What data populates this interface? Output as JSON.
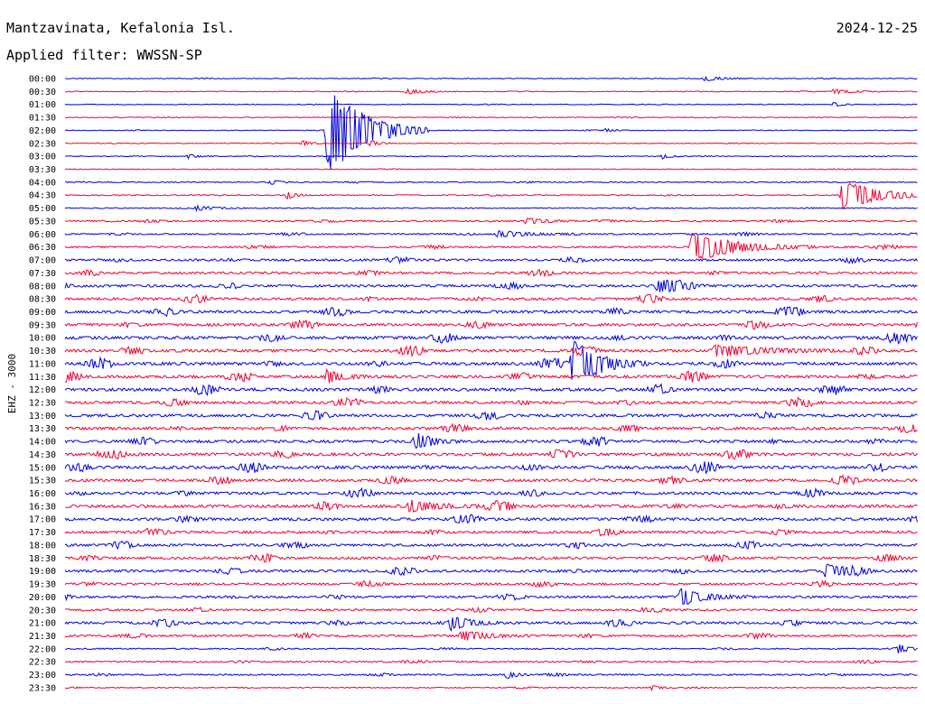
{
  "header": {
    "station": "Mantzavinata, Kefalonia Isl.",
    "date": "2024-12-25",
    "filter": "Applied filter: WWSSN-SP"
  },
  "chart_data": {
    "type": "line",
    "ylabel": "EHZ - 3000",
    "rows": [
      "00:00",
      "00:30",
      "01:00",
      "01:30",
      "02:00",
      "02:30",
      "03:00",
      "03:30",
      "04:00",
      "04:30",
      "05:00",
      "05:30",
      "06:00",
      "06:30",
      "07:00",
      "07:30",
      "08:00",
      "08:30",
      "09:00",
      "09:30",
      "10:00",
      "10:30",
      "11:00",
      "11:30",
      "12:00",
      "12:30",
      "13:00",
      "13:30",
      "14:00",
      "14:30",
      "15:00",
      "15:30",
      "16:00",
      "16:30",
      "17:00",
      "17:30",
      "18:00",
      "18:30",
      "19:00",
      "19:30",
      "20:00",
      "20:30",
      "21:00",
      "21:30",
      "22:00",
      "22:30",
      "23:00",
      "23:30"
    ],
    "minutes_per_row": 30,
    "colors": [
      "#0000dd",
      "#ee0033"
    ],
    "noise_level": [
      0.3,
      0.3,
      0.3,
      0.3,
      0.3,
      0.3,
      0.3,
      0.3,
      0.4,
      0.4,
      0.4,
      0.6,
      0.6,
      0.7,
      0.9,
      0.9,
      1.0,
      1.0,
      1.1,
      1.1,
      1.2,
      1.2,
      1.2,
      1.2,
      1.2,
      1.1,
      1.1,
      1.1,
      1.1,
      1.2,
      1.2,
      1.1,
      1.1,
      1.2,
      1.1,
      1.0,
      1.0,
      1.0,
      1.0,
      0.9,
      0.9,
      0.8,
      1.0,
      0.8,
      0.5,
      0.6,
      0.6,
      0.4
    ],
    "events": [
      {
        "row": 0,
        "minute": 22.5,
        "amp": 3,
        "dur": 0.6
      },
      {
        "row": 1,
        "minute": 12,
        "amp": 3,
        "dur": 0.6
      },
      {
        "row": 1,
        "minute": 27,
        "amp": 3,
        "dur": 0.6
      },
      {
        "row": 2,
        "minute": 27,
        "amp": 3,
        "dur": 0.3
      },
      {
        "row": 4,
        "minute": 9.2,
        "amp": 55,
        "dur": 1.2
      },
      {
        "row": 4,
        "minute": 19,
        "amp": 2,
        "dur": 0.3
      },
      {
        "row": 5,
        "minute": 8.3,
        "amp": 4,
        "dur": 0.3
      },
      {
        "row": 5,
        "minute": 10.7,
        "amp": 4,
        "dur": 0.3
      },
      {
        "row": 6,
        "minute": 4.3,
        "amp": 3,
        "dur": 0.3
      },
      {
        "row": 6,
        "minute": 21,
        "amp": 3,
        "dur": 0.3
      },
      {
        "row": 8,
        "minute": 7.2,
        "amp": 3,
        "dur": 0.3
      },
      {
        "row": 9,
        "minute": 7.8,
        "amp": 5,
        "dur": 0.3
      },
      {
        "row": 9,
        "minute": 27.3,
        "amp": 18,
        "dur": 1.2
      },
      {
        "row": 10,
        "minute": 4.6,
        "amp": 3,
        "dur": 0.6
      },
      {
        "row": 11,
        "minute": 16.2,
        "amp": 4,
        "dur": 0.6
      },
      {
        "row": 12,
        "minute": 15.2,
        "amp": 4,
        "dur": 1.0
      },
      {
        "row": 13,
        "minute": 22,
        "amp": 16,
        "dur": 1.5
      },
      {
        "row": 16,
        "minute": 20.8,
        "amp": 9,
        "dur": 0.6
      },
      {
        "row": 21,
        "minute": 22.8,
        "amp": 7,
        "dur": 1.5
      },
      {
        "row": 22,
        "minute": 17.8,
        "amp": 30,
        "dur": 0.9
      },
      {
        "row": 23,
        "minute": 9.2,
        "amp": 8,
        "dur": 0.5
      },
      {
        "row": 28,
        "minute": 12.3,
        "amp": 7,
        "dur": 0.6
      },
      {
        "row": 33,
        "minute": 12.1,
        "amp": 7,
        "dur": 0.9
      },
      {
        "row": 38,
        "minute": 26.7,
        "amp": 9,
        "dur": 0.6
      },
      {
        "row": 40,
        "minute": 21.6,
        "amp": 9,
        "dur": 0.9
      },
      {
        "row": 42,
        "minute": 13.5,
        "amp": 10,
        "dur": 0.6
      },
      {
        "row": 43,
        "minute": 13.9,
        "amp": 6,
        "dur": 0.9
      },
      {
        "row": 44,
        "minute": 29.3,
        "amp": 5,
        "dur": 0.3
      },
      {
        "row": 46,
        "minute": 15.5,
        "amp": 5,
        "dur": 0.3
      },
      {
        "row": 47,
        "minute": 20.6,
        "amp": 3,
        "dur": 0.3
      }
    ]
  }
}
